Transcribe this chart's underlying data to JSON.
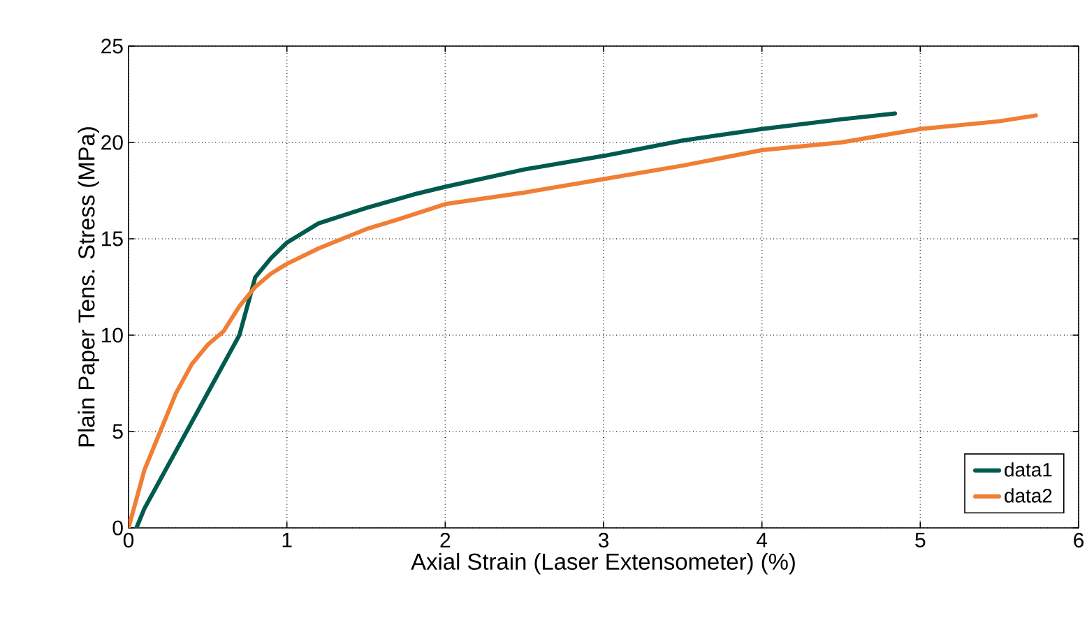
{
  "chart_data": {
    "type": "line",
    "xlabel": "Axial Strain (Laser Extensometer) (%)",
    "ylabel": "Plain Paper Tens. Stress (MPa)",
    "xlim": [
      0,
      6
    ],
    "ylim": [
      0,
      25
    ],
    "xticks": [
      0,
      1,
      2,
      3,
      4,
      5,
      6
    ],
    "yticks": [
      0,
      5,
      10,
      15,
      20,
      25
    ],
    "grid": true,
    "legend": "bottom right",
    "line_style": "solid",
    "marker": "none",
    "series": [
      {
        "name": "data1",
        "color": "#005a4e",
        "x": [
          0.05,
          0.1,
          0.2,
          0.3,
          0.4,
          0.5,
          0.6,
          0.7,
          0.75,
          0.8,
          0.9,
          1.0,
          1.2,
          1.5,
          1.8,
          2.0,
          2.5,
          3.0,
          3.5,
          4.0,
          4.5,
          4.84
        ],
        "values": [
          0,
          1,
          2.5,
          4,
          5.5,
          7,
          8.5,
          10,
          11.5,
          13,
          14,
          14.8,
          15.8,
          16.6,
          17.3,
          17.7,
          18.6,
          19.3,
          20.1,
          20.7,
          21.2,
          21.5
        ]
      },
      {
        "name": "data2",
        "color": "#f07f35",
        "x": [
          0,
          0.05,
          0.1,
          0.2,
          0.3,
          0.4,
          0.5,
          0.6,
          0.7,
          0.8,
          0.9,
          1.0,
          1.2,
          1.5,
          1.7,
          2.0,
          2.5,
          3.0,
          3.5,
          4.0,
          4.5,
          5.0,
          5.5,
          5.73
        ],
        "values": [
          0,
          1.5,
          3,
          5,
          7,
          8.5,
          9.5,
          10.2,
          11.5,
          12.5,
          13.2,
          13.7,
          14.5,
          15.5,
          16,
          16.8,
          17.4,
          18.1,
          18.8,
          19.6,
          20.0,
          20.7,
          21.1,
          21.4
        ]
      }
    ]
  }
}
